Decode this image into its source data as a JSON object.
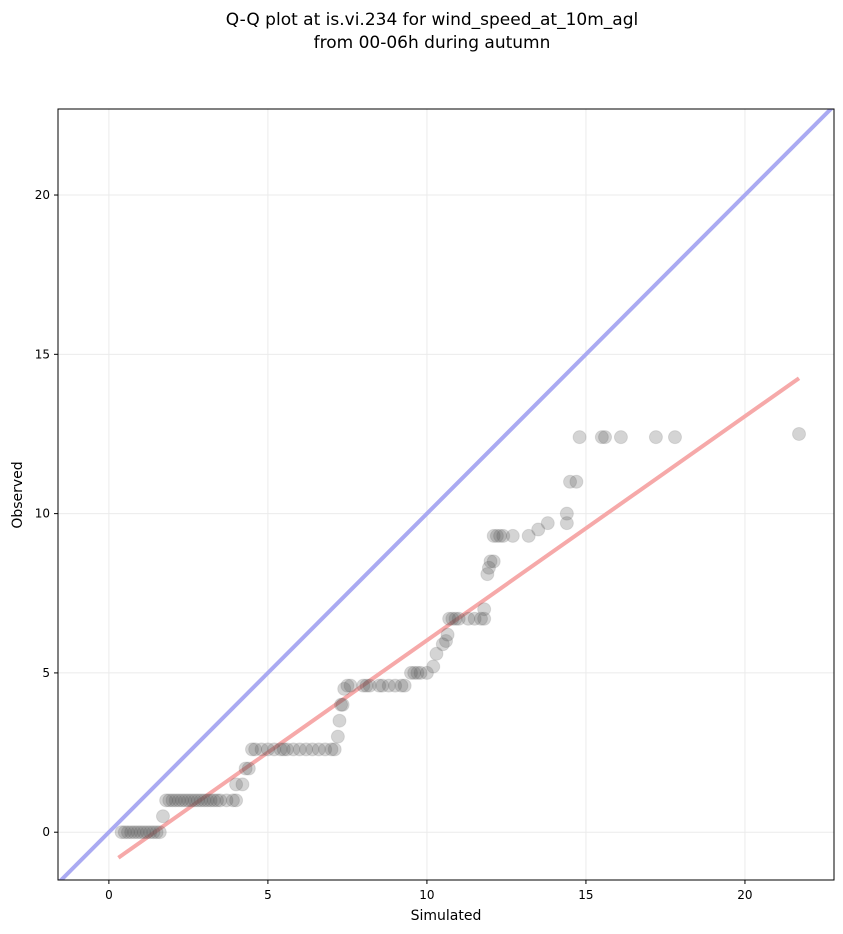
{
  "chart_data": {
    "type": "scatter",
    "title": "Q-Q plot at is.vi.234 for wind_speed_at_10m_agl",
    "subtitle": "from 00-06h during autumn",
    "xlabel": "Simulated",
    "ylabel": "Observed",
    "xlim": [
      -1.6,
      22.8
    ],
    "ylim": [
      -1.5,
      22.7
    ],
    "xticks": [
      0,
      5,
      10,
      15,
      20
    ],
    "yticks": [
      0,
      5,
      10,
      15,
      20
    ],
    "grid": true,
    "legend": "none",
    "points": [
      [
        0.4,
        0
      ],
      [
        0.5,
        0
      ],
      [
        0.6,
        0
      ],
      [
        0.7,
        0
      ],
      [
        0.8,
        0
      ],
      [
        0.9,
        0
      ],
      [
        1.0,
        0
      ],
      [
        1.1,
        0
      ],
      [
        1.2,
        0
      ],
      [
        1.3,
        0
      ],
      [
        1.4,
        0
      ],
      [
        1.5,
        0
      ],
      [
        1.6,
        0
      ],
      [
        1.7,
        0.5
      ],
      [
        1.8,
        1.0
      ],
      [
        1.9,
        1.0
      ],
      [
        2.0,
        1.0
      ],
      [
        2.1,
        1.0
      ],
      [
        2.2,
        1.0
      ],
      [
        2.3,
        1.0
      ],
      [
        2.4,
        1.0
      ],
      [
        2.5,
        1.0
      ],
      [
        2.6,
        1.0
      ],
      [
        2.7,
        1.0
      ],
      [
        2.8,
        1.0
      ],
      [
        2.9,
        1.0
      ],
      [
        3.0,
        1.0
      ],
      [
        3.1,
        1.0
      ],
      [
        3.2,
        1.0
      ],
      [
        3.3,
        1.0
      ],
      [
        3.4,
        1.0
      ],
      [
        3.5,
        1.0
      ],
      [
        3.7,
        1.0
      ],
      [
        3.9,
        1.0
      ],
      [
        4.0,
        1.0
      ],
      [
        4.0,
        1.5
      ],
      [
        4.2,
        1.5
      ],
      [
        4.3,
        2.0
      ],
      [
        4.4,
        2.0
      ],
      [
        4.5,
        2.6
      ],
      [
        4.6,
        2.6
      ],
      [
        4.8,
        2.6
      ],
      [
        5.0,
        2.6
      ],
      [
        5.2,
        2.6
      ],
      [
        5.4,
        2.6
      ],
      [
        5.5,
        2.6
      ],
      [
        5.6,
        2.6
      ],
      [
        5.8,
        2.6
      ],
      [
        6.0,
        2.6
      ],
      [
        6.2,
        2.6
      ],
      [
        6.4,
        2.6
      ],
      [
        6.6,
        2.6
      ],
      [
        6.8,
        2.6
      ],
      [
        7.0,
        2.6
      ],
      [
        7.1,
        2.6
      ],
      [
        7.2,
        3.0
      ],
      [
        7.25,
        3.5
      ],
      [
        7.3,
        4.0
      ],
      [
        7.35,
        4.0
      ],
      [
        7.4,
        4.5
      ],
      [
        7.5,
        4.6
      ],
      [
        7.6,
        4.6
      ],
      [
        8.0,
        4.6
      ],
      [
        8.1,
        4.6
      ],
      [
        8.2,
        4.6
      ],
      [
        8.5,
        4.6
      ],
      [
        8.6,
        4.6
      ],
      [
        8.8,
        4.6
      ],
      [
        9.0,
        4.6
      ],
      [
        9.2,
        4.6
      ],
      [
        9.3,
        4.6
      ],
      [
        9.5,
        5.0
      ],
      [
        9.6,
        5.0
      ],
      [
        9.7,
        5.0
      ],
      [
        9.8,
        5.0
      ],
      [
        10.0,
        5.0
      ],
      [
        10.2,
        5.2
      ],
      [
        10.3,
        5.6
      ],
      [
        10.5,
        5.9
      ],
      [
        10.6,
        6.0
      ],
      [
        10.65,
        6.2
      ],
      [
        10.7,
        6.7
      ],
      [
        10.8,
        6.7
      ],
      [
        10.9,
        6.7
      ],
      [
        11.0,
        6.7
      ],
      [
        11.3,
        6.7
      ],
      [
        11.5,
        6.7
      ],
      [
        11.7,
        6.7
      ],
      [
        11.8,
        6.7
      ],
      [
        11.8,
        7.0
      ],
      [
        11.9,
        8.1
      ],
      [
        11.95,
        8.3
      ],
      [
        12.0,
        8.5
      ],
      [
        12.1,
        8.5
      ],
      [
        12.1,
        9.3
      ],
      [
        12.2,
        9.3
      ],
      [
        12.3,
        9.3
      ],
      [
        12.4,
        9.3
      ],
      [
        12.7,
        9.3
      ],
      [
        13.2,
        9.3
      ],
      [
        13.5,
        9.5
      ],
      [
        13.8,
        9.7
      ],
      [
        14.4,
        9.7
      ],
      [
        14.4,
        10.0
      ],
      [
        14.5,
        11.0
      ],
      [
        14.7,
        11.0
      ],
      [
        14.8,
        12.4
      ],
      [
        15.5,
        12.4
      ],
      [
        15.6,
        12.4
      ],
      [
        16.1,
        12.4
      ],
      [
        17.2,
        12.4
      ],
      [
        17.8,
        12.4
      ],
      [
        21.7,
        12.5
      ]
    ],
    "identity_line": {
      "color": "#aaaaf2"
    },
    "fit_line": {
      "x": [
        0.3,
        21.7
      ],
      "y": [
        -0.8,
        14.25
      ],
      "color": "#f6a9a9"
    },
    "point_color": "#555555"
  }
}
